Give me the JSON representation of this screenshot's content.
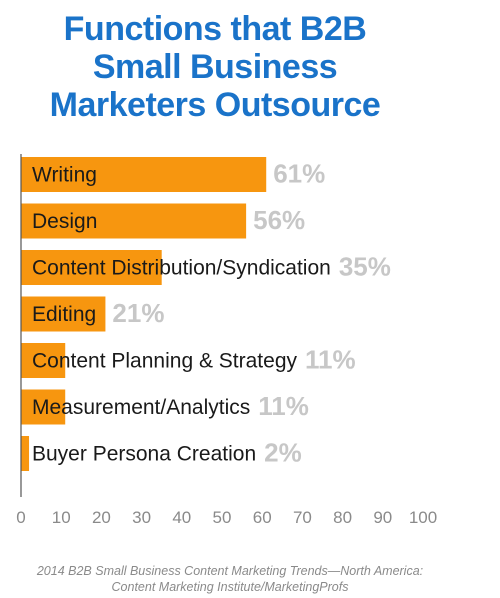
{
  "title_lines": [
    "Functions that B2B",
    "Small Business",
    "Marketers Outsource"
  ],
  "source_lines": [
    "2014 B2B Small Business Content Marketing Trends—North America:",
    "Content Marketing Institute/MarketingProfs"
  ],
  "colors": {
    "title": "#1a73c9",
    "bar": "#f7960f",
    "label": "#1a1a1a",
    "value": "#c7c7c7",
    "axis": "#555555",
    "tick_label": "#8a8a8a",
    "source": "#8a8a8a"
  },
  "chart_data": {
    "type": "bar",
    "orientation": "horizontal",
    "title": "Functions that B2B Small Business Marketers Outsource",
    "categories": [
      "Writing",
      "Design",
      "Content Distribution/Syndication",
      "Editing",
      "Content Planning & Strategy",
      "Measurement/Analytics",
      "Buyer Persona Creation"
    ],
    "values": [
      61,
      56,
      35,
      21,
      11,
      11,
      2
    ],
    "value_labels": [
      "61%",
      "56%",
      "35%",
      "21%",
      "11%",
      "11%",
      "2%"
    ],
    "xlim": [
      0,
      100
    ],
    "xticks": [
      0,
      10,
      20,
      30,
      40,
      50,
      60,
      70,
      80,
      90,
      100
    ],
    "xlabel": "",
    "ylabel": "",
    "grid": false,
    "legend": "none"
  }
}
